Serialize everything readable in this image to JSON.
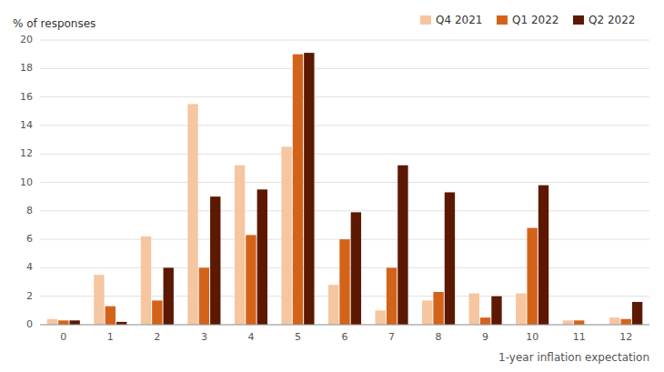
{
  "chart_data": {
    "type": "bar",
    "categories": [
      "0",
      "1",
      "2",
      "3",
      "4",
      "5",
      "6",
      "7",
      "8",
      "9",
      "10",
      "11",
      "12"
    ],
    "series": [
      {
        "name": "Q4 2021",
        "color": "#f5c6a0",
        "values": [
          0.4,
          3.5,
          6.2,
          15.5,
          11.2,
          12.5,
          2.8,
          1.0,
          1.7,
          2.2,
          2.2,
          0.3,
          0.5
        ]
      },
      {
        "name": "Q1 2022",
        "color": "#d4631a",
        "values": [
          0.3,
          1.3,
          1.7,
          4.0,
          6.3,
          19.0,
          6.0,
          4.0,
          2.3,
          0.5,
          6.8,
          0.3,
          0.4
        ]
      },
      {
        "name": "Q2 2022",
        "color": "#5c1800",
        "values": [
          0.3,
          0.2,
          4.0,
          9.0,
          9.5,
          19.1,
          7.9,
          11.2,
          9.3,
          2.0,
          9.8,
          0.0,
          1.6
        ]
      }
    ],
    "x_label": "1-year inflation expectation",
    "y_label": "% of responses",
    "ylim": [
      0,
      20
    ],
    "yticks": [
      0,
      2,
      4,
      6,
      8,
      10,
      12,
      14,
      16,
      18,
      20
    ],
    "grid": true,
    "legend": "top-right"
  }
}
